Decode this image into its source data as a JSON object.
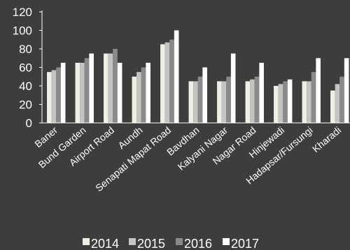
{
  "chart_data": {
    "type": "bar",
    "categories": [
      "Baner",
      "Bund Garden",
      "Airport Road",
      "Aundh",
      "Senapati Mapat Road",
      "Bavdhan",
      "Kalyani Nagar",
      "Nagar Road",
      "Hinjewadi",
      "Hadapsar/Fursungi",
      "Kharadi"
    ],
    "series": [
      {
        "name": "2014",
        "color": "#f0efe4",
        "values": [
          55,
          65,
          75,
          50,
          85,
          45,
          45,
          45,
          40,
          45,
          35
        ]
      },
      {
        "name": "2015",
        "color": "#c4c4c4",
        "values": [
          57,
          65,
          75,
          55,
          87,
          45,
          45,
          47,
          42,
          45,
          42
        ]
      },
      {
        "name": "2016",
        "color": "#8a8a8a",
        "values": [
          60,
          70,
          80,
          60,
          90,
          50,
          50,
          50,
          45,
          55,
          50
        ]
      },
      {
        "name": "2017",
        "color": "#ffffff",
        "values": [
          65,
          75,
          65,
          65,
          100,
          60,
          75,
          65,
          47,
          70,
          70
        ]
      }
    ],
    "ylim": [
      0,
      120
    ],
    "yticks": [
      0,
      20,
      40,
      60,
      80,
      100,
      120
    ],
    "xlabel": "",
    "ylabel": "",
    "title": "",
    "grid": false,
    "legend": "bottom"
  }
}
